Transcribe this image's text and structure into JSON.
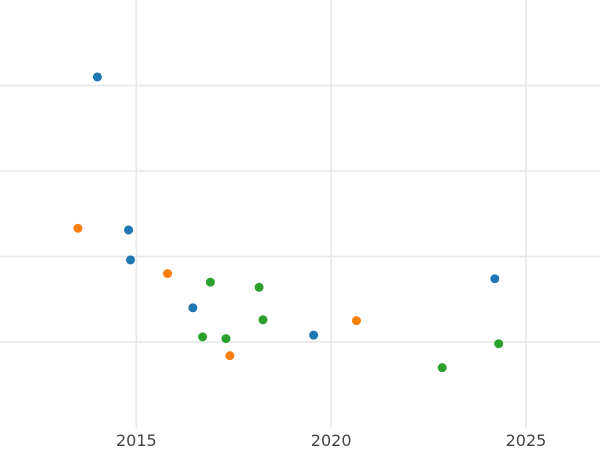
{
  "chart_data": {
    "type": "scatter",
    "title": "",
    "xlabel": "",
    "ylabel": "",
    "grid": true,
    "legend": "none",
    "xlim": [
      2011.5,
      2026.9
    ],
    "ylim": [
      0,
      5
    ],
    "x_ticks": [
      2015,
      2020,
      2025
    ],
    "x_tick_labels": [
      "2015",
      "2020",
      "2025"
    ],
    "y_gridlines": [
      1,
      2,
      3,
      4
    ],
    "series": [
      {
        "color": "#1f77b4",
        "points": [
          {
            "x": 2014.0,
            "y": 4.1
          },
          {
            "x": 2014.8,
            "y": 2.31
          },
          {
            "x": 2014.85,
            "y": 1.96
          },
          {
            "x": 2016.45,
            "y": 1.4
          },
          {
            "x": 2019.55,
            "y": 1.08
          },
          {
            "x": 2024.2,
            "y": 1.74
          }
        ]
      },
      {
        "color": "#ff7f0e",
        "points": [
          {
            "x": 2013.5,
            "y": 2.33
          },
          {
            "x": 2015.8,
            "y": 1.8
          },
          {
            "x": 2017.4,
            "y": 0.84
          },
          {
            "x": 2020.65,
            "y": 1.25
          }
        ]
      },
      {
        "color": "#2ca02c",
        "points": [
          {
            "x": 2016.9,
            "y": 1.7
          },
          {
            "x": 2018.15,
            "y": 1.64
          },
          {
            "x": 2018.25,
            "y": 1.26
          },
          {
            "x": 2016.7,
            "y": 1.06
          },
          {
            "x": 2017.3,
            "y": 1.04
          },
          {
            "x": 2022.85,
            "y": 0.7
          },
          {
            "x": 2024.3,
            "y": 0.98
          }
        ]
      }
    ]
  }
}
